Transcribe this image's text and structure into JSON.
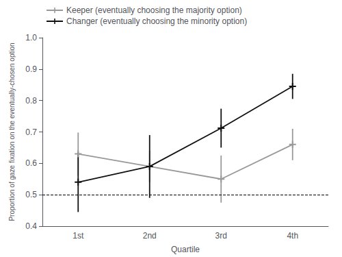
{
  "chart_data": {
    "type": "line",
    "categories": [
      "1st",
      "2nd",
      "3rd",
      "4th"
    ],
    "xlabel": "Quartile",
    "ylabel": "Proportion of gaze fixation on the eventually-chosen option",
    "series": [
      {
        "name": "Keeper (eventually choosing the majority option)",
        "color": "#999999",
        "values": [
          0.63,
          0.59,
          0.55,
          0.66
        ],
        "errors": [
          0.068,
          0.05,
          0.075,
          0.05
        ],
        "marker": "plus",
        "line_style": "solid"
      },
      {
        "name": "Changer (eventually choosing the minority option)",
        "color": "#111111",
        "values": [
          0.54,
          0.59,
          0.712,
          0.845
        ],
        "errors": [
          0.095,
          0.1,
          0.062,
          0.04
        ],
        "marker": "plus",
        "line_style": "solid"
      }
    ],
    "ylim": [
      0.4,
      1.0
    ],
    "yticks": [
      0.4,
      0.5,
      0.6,
      0.7,
      0.8,
      0.9,
      {
        "value": 1.0,
        "label": "1.0"
      }
    ],
    "reference_line": {
      "value": 0.5,
      "color": "#000000",
      "line_style": "dashed"
    },
    "legend": "upper left",
    "grid": false
  }
}
